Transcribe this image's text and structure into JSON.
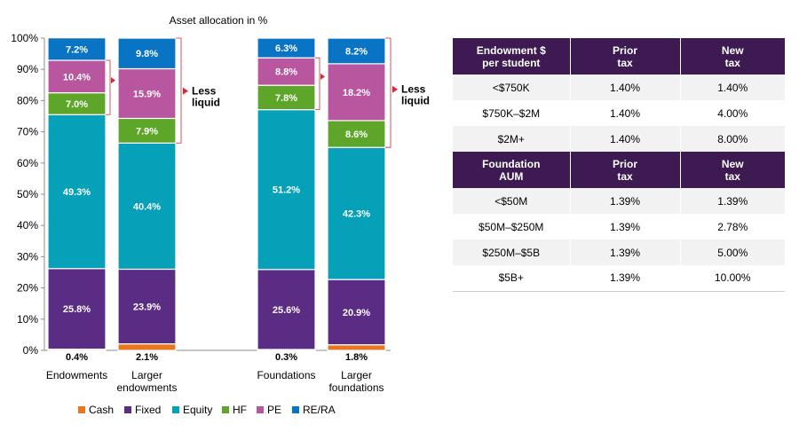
{
  "chart_data": {
    "type": "bar",
    "stacked": true,
    "title": "Asset allocation in %",
    "ylim": [
      0,
      100
    ],
    "yticks": [
      "0%",
      "10%",
      "20%",
      "30%",
      "40%",
      "50%",
      "60%",
      "70%",
      "80%",
      "90%",
      "100%"
    ],
    "categories": [
      "Endowments",
      "Larger endowments",
      "Foundations",
      "Larger foundations"
    ],
    "series": [
      {
        "name": "Cash",
        "color": "#e87722",
        "values": [
          0.4,
          2.1,
          0.3,
          1.8
        ],
        "labels": [
          "0.4%",
          "2.1%",
          "0.3%",
          "1.8%"
        ]
      },
      {
        "name": "Fixed",
        "color": "#5b2c83",
        "values": [
          25.8,
          23.9,
          25.6,
          20.9
        ],
        "labels": [
          "25.8%",
          "23.9%",
          "25.6%",
          "20.9%"
        ]
      },
      {
        "name": "Equity",
        "color": "#06a0b9",
        "values": [
          49.3,
          40.4,
          51.2,
          42.3
        ],
        "labels": [
          "49.3%",
          "40.4%",
          "51.2%",
          "42.3%"
        ]
      },
      {
        "name": "HF",
        "color": "#5ea62a",
        "values": [
          7.0,
          7.9,
          7.8,
          8.6
        ],
        "labels": [
          "7.0%",
          "7.9%",
          "7.8%",
          "8.6%"
        ]
      },
      {
        "name": "PE",
        "color": "#b8579f",
        "values": [
          10.4,
          15.9,
          8.8,
          18.2
        ],
        "labels": [
          "10.4%",
          "15.9%",
          "8.8%",
          "18.2%"
        ]
      },
      {
        "name": "RE/RA",
        "color": "#0a74c4",
        "values": [
          7.2,
          9.8,
          6.3,
          8.2
        ],
        "labels": [
          "7.2%",
          "9.8%",
          "6.3%",
          "8.2%"
        ]
      }
    ],
    "annotation": [
      "Less",
      "liquid"
    ],
    "annotation_color": "#d6283a",
    "legend_position": "bottom",
    "grid": false
  },
  "table": {
    "header_color": "#3d1b52",
    "sections": [
      {
        "header": [
          [
            "Endowment $",
            "per student"
          ],
          [
            "Prior",
            "tax"
          ],
          [
            "New",
            "tax"
          ]
        ],
        "rows": [
          [
            "<$750K",
            "1.40%",
            "1.40%"
          ],
          [
            "$750K–$2M",
            "1.40%",
            "4.00%"
          ],
          [
            "$2M+",
            "1.40%",
            "8.00%"
          ]
        ]
      },
      {
        "header": [
          [
            "Foundation",
            "AUM"
          ],
          [
            "Prior",
            "tax"
          ],
          [
            "New",
            "tax"
          ]
        ],
        "rows": [
          [
            "<$50M",
            "1.39%",
            "1.39%"
          ],
          [
            "$50M–$250M",
            "1.39%",
            "2.78%"
          ],
          [
            "$250M–$5B",
            "1.39%",
            "5.00%"
          ],
          [
            "$5B+",
            "1.39%",
            "10.00%"
          ]
        ]
      }
    ]
  }
}
